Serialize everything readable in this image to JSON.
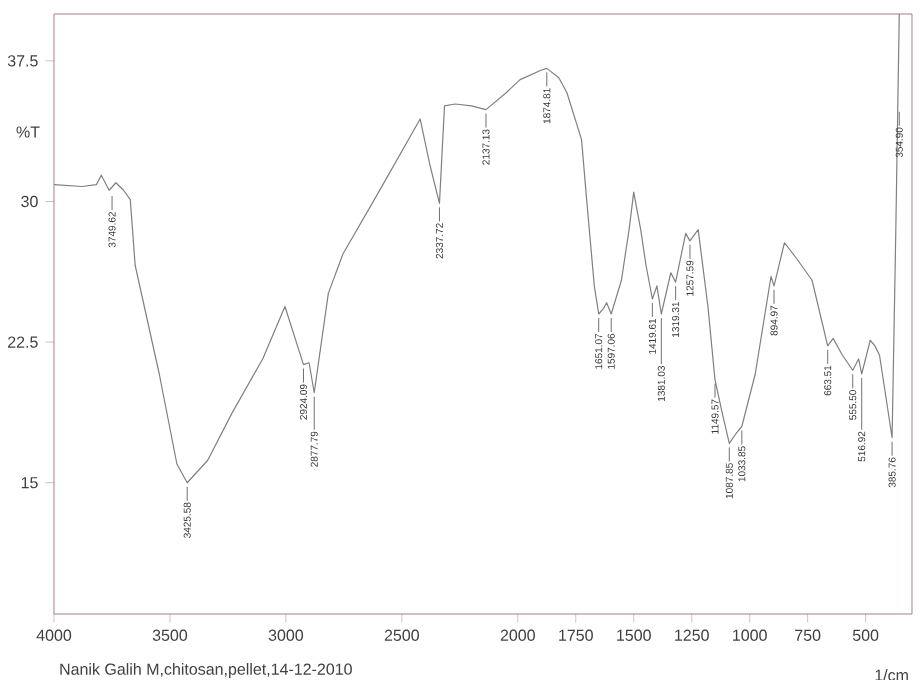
{
  "chart_data": {
    "type": "line",
    "xlabel": "1/cm",
    "ylabel": "%T",
    "color": "#808080",
    "xlim": [
      4000,
      300
    ],
    "ylim": [
      8,
      40
    ],
    "xticks": [
      4000,
      3500,
      3000,
      2500,
      2000,
      1750,
      1500,
      1250,
      1000,
      750,
      500
    ],
    "yticks": [
      15,
      22.5,
      30,
      37.5
    ],
    "x": [
      4000,
      3879,
      3817,
      3796,
      3762,
      3733,
      3700,
      3671,
      3650,
      3546,
      3470,
      3425.58,
      3337,
      3233,
      3100,
      3004,
      2924.09,
      2900,
      2877.79,
      2817,
      2754,
      2600,
      2421,
      2380,
      2337.72,
      2316,
      2270,
      2200,
      2137.13,
      2050,
      1990,
      1900,
      1874.81,
      1823,
      1788,
      1725,
      1703,
      1670,
      1651.07,
      1630,
      1617,
      1597.06,
      1553,
      1520,
      1500,
      1470,
      1447,
      1419.61,
      1400,
      1381.03,
      1340,
      1319.31,
      1276,
      1257.59,
      1222,
      1180,
      1149.57,
      1120,
      1087.85,
      1060,
      1033.85,
      976,
      908,
      894.97,
      850,
      800,
      731,
      663.51,
      640,
      600,
      555.5,
      530,
      516.92,
      480,
      460,
      440,
      385.76,
      370,
      354.9
    ],
    "values": [
      30.9,
      30.8,
      30.9,
      31.4,
      30.6,
      31.0,
      30.6,
      30.1,
      26.6,
      20.8,
      16.0,
      15.0,
      16.2,
      18.7,
      21.6,
      24.4,
      21.3,
      21.4,
      19.8,
      25.1,
      27.2,
      30.5,
      34.4,
      32.0,
      29.9,
      35.1,
      35.2,
      35.1,
      34.9,
      35.8,
      36.5,
      37.0,
      37.1,
      36.6,
      35.8,
      33.3,
      30.1,
      25.5,
      24.0,
      24.3,
      24.6,
      24.0,
      25.8,
      28.5,
      30.5,
      28.5,
      26.6,
      24.8,
      25.5,
      24.0,
      26.2,
      25.7,
      28.3,
      27.9,
      28.5,
      24.4,
      20.5,
      18.8,
      17.1,
      17.6,
      18.0,
      20.8,
      26.0,
      25.5,
      27.8,
      27.0,
      25.8,
      22.3,
      22.7,
      21.8,
      21.0,
      21.6,
      20.8,
      22.6,
      22.3,
      21.8,
      17.4,
      28.3,
      40
    ],
    "annotations": [
      {
        "text": "3749.62",
        "x": 3749.62,
        "y": 30.5
      },
      {
        "text": "3425.58",
        "x": 3425.58,
        "y": 15.0
      },
      {
        "text": "2924.09",
        "x": 2924.09,
        "y": 21.3
      },
      {
        "text": "2877.79",
        "x": 2877.79,
        "y": 19.8
      },
      {
        "text": "2337.72",
        "x": 2337.72,
        "y": 29.9
      },
      {
        "text": "2137.13",
        "x": 2137.13,
        "y": 34.9
      },
      {
        "text": "1874.81",
        "x": 1874.81,
        "y": 37.1
      },
      {
        "text": "1651.07",
        "x": 1651.07,
        "y": 24.0
      },
      {
        "text": "1597.06",
        "x": 1597.06,
        "y": 24.0
      },
      {
        "text": "1419.61",
        "x": 1419.61,
        "y": 24.8
      },
      {
        "text": "1381.03",
        "x": 1381.03,
        "y": 24.0
      },
      {
        "text": "1319.31",
        "x": 1319.31,
        "y": 25.7
      },
      {
        "text": "1257.59",
        "x": 1257.59,
        "y": 27.9
      },
      {
        "text": "1149.57",
        "x": 1149.57,
        "y": 20.5
      },
      {
        "text": "1087.85",
        "x": 1087.85,
        "y": 17.1
      },
      {
        "text": "1033.85",
        "x": 1033.85,
        "y": 18.0
      },
      {
        "text": "894.97",
        "x": 894.97,
        "y": 25.5
      },
      {
        "text": "663.51",
        "x": 663.51,
        "y": 22.3
      },
      {
        "text": "555.50",
        "x": 555.5,
        "y": 21.0
      },
      {
        "text": "516.92",
        "x": 516.92,
        "y": 20.8
      },
      {
        "text": "385.76",
        "x": 385.76,
        "y": 17.4
      },
      {
        "text": "354.90",
        "x": 354.9,
        "y": 35
      },
      "Nanik Galih M,chitosan,pellet,14-12-2010"
    ]
  }
}
